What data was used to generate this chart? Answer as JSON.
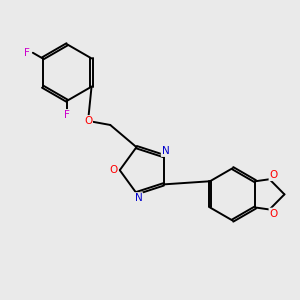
{
  "background_color": "#eaeaea",
  "bond_color": "#000000",
  "atom_colors": {
    "O": "#ff0000",
    "N": "#0000cc",
    "F": "#cc00cc",
    "C": "#000000"
  },
  "figsize": [
    3.0,
    3.0
  ],
  "dpi": 100,
  "lw": 1.4,
  "fontsize": 7.5
}
